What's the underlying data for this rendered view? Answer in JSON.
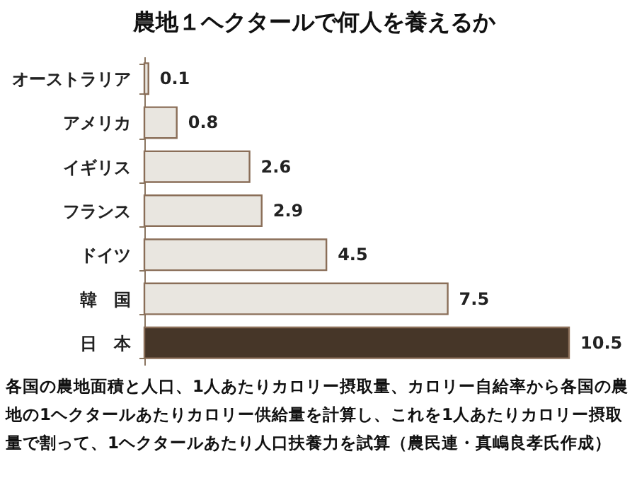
{
  "chart_data": {
    "type": "bar",
    "orientation": "horizontal",
    "title": "農地１ヘクタールで何人を養えるか",
    "categories": [
      "オーストラリア",
      "アメリカ",
      "イギリス",
      "フランス",
      "ドイツ",
      "韓　国",
      "日　本"
    ],
    "values": [
      0.1,
      0.8,
      2.6,
      2.9,
      4.5,
      7.5,
      10.5
    ],
    "colors": [
      "#e9e6e0",
      "#e9e6e0",
      "#e9e6e0",
      "#e9e6e0",
      "#e9e6e0",
      "#e9e6e0",
      "#463628"
    ],
    "data_labels": true,
    "tick_labels": "y",
    "annotations": [
      "各国の農地面積と人口、1人あたりカロリー摂取量、カロリー自給率から各国の農地の1ヘクタールあたりカロリー供給量を計算し、これを1人あたりカロリー摂取量で割って、1ヘクタールあたり人口扶養力を試算（農民連・真嶋良孝氏作成）"
    ]
  }
}
